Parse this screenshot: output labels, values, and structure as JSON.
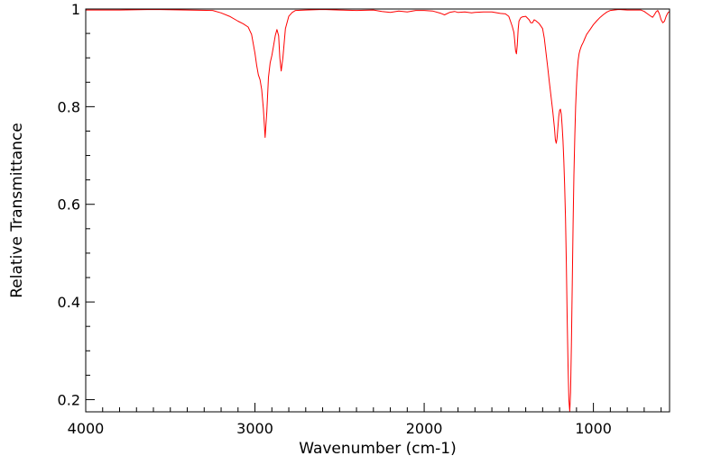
{
  "chart_data": {
    "type": "line",
    "title": "",
    "xlabel": "Wavenumber (cm-1)",
    "ylabel": "Relative Transmittance",
    "xlim": [
      4000,
      550
    ],
    "ylim": [
      0.175,
      1.0
    ],
    "x_ticks": [
      {
        "value": 4000,
        "label": "4000"
      },
      {
        "value": 3000,
        "label": "3000"
      },
      {
        "value": 2000,
        "label": "2000"
      },
      {
        "value": 1000,
        "label": "1000"
      }
    ],
    "y_ticks": [
      {
        "value": 1.0,
        "label": "1"
      },
      {
        "value": 0.8,
        "label": "0.8"
      },
      {
        "value": 0.6,
        "label": "0.6"
      },
      {
        "value": 0.4,
        "label": "0.4"
      },
      {
        "value": 0.2,
        "label": "0.2"
      }
    ],
    "grid": false,
    "legend": "none",
    "series": [
      {
        "color": "#ff0000",
        "x": [
          4000,
          3800,
          3600,
          3400,
          3250,
          3200,
          3150,
          3100,
          3070,
          3040,
          3020,
          3000,
          2990,
          2980,
          2970,
          2960,
          2950,
          2940,
          2930,
          2920,
          2910,
          2900,
          2890,
          2880,
          2870,
          2860,
          2853,
          2845,
          2835,
          2820,
          2800,
          2780,
          2760,
          2700,
          2600,
          2500,
          2400,
          2300,
          2250,
          2200,
          2150,
          2100,
          2050,
          2000,
          1950,
          1900,
          1880,
          1850,
          1820,
          1800,
          1760,
          1720,
          1700,
          1650,
          1600,
          1550,
          1520,
          1500,
          1490,
          1480,
          1470,
          1465,
          1460,
          1455,
          1450,
          1445,
          1440,
          1430,
          1420,
          1400,
          1380,
          1370,
          1360,
          1350,
          1340,
          1320,
          1300,
          1290,
          1280,
          1270,
          1260,
          1250,
          1240,
          1230,
          1225,
          1220,
          1215,
          1210,
          1205,
          1200,
          1195,
          1190,
          1185,
          1180,
          1175,
          1170,
          1165,
          1160,
          1155,
          1150,
          1145,
          1140,
          1135,
          1130,
          1125,
          1120,
          1115,
          1110,
          1105,
          1100,
          1095,
          1090,
          1085,
          1080,
          1075,
          1070,
          1060,
          1050,
          1040,
          1030,
          1020,
          1000,
          980,
          960,
          940,
          920,
          900,
          850,
          800,
          750,
          720,
          700,
          680,
          660,
          650,
          640,
          630,
          620,
          610,
          600,
          590,
          580,
          570,
          560,
          550
        ],
        "y": [
          0.998,
          0.998,
          0.999,
          0.998,
          0.997,
          0.992,
          0.985,
          0.975,
          0.97,
          0.963,
          0.948,
          0.91,
          0.885,
          0.865,
          0.855,
          0.835,
          0.795,
          0.737,
          0.79,
          0.86,
          0.89,
          0.905,
          0.925,
          0.945,
          0.958,
          0.945,
          0.9,
          0.873,
          0.9,
          0.96,
          0.985,
          0.993,
          0.997,
          0.998,
          0.999,
          0.998,
          0.997,
          0.998,
          0.995,
          0.993,
          0.996,
          0.994,
          0.997,
          0.997,
          0.996,
          0.991,
          0.988,
          0.993,
          0.995,
          0.993,
          0.994,
          0.992,
          0.993,
          0.994,
          0.994,
          0.991,
          0.99,
          0.985,
          0.975,
          0.965,
          0.952,
          0.935,
          0.915,
          0.908,
          0.925,
          0.958,
          0.975,
          0.982,
          0.984,
          0.985,
          0.978,
          0.972,
          0.972,
          0.978,
          0.976,
          0.97,
          0.96,
          0.94,
          0.91,
          0.88,
          0.85,
          0.82,
          0.79,
          0.755,
          0.733,
          0.725,
          0.735,
          0.756,
          0.78,
          0.792,
          0.795,
          0.785,
          0.762,
          0.73,
          0.69,
          0.64,
          0.57,
          0.48,
          0.37,
          0.27,
          0.2,
          0.176,
          0.215,
          0.31,
          0.44,
          0.56,
          0.66,
          0.74,
          0.8,
          0.845,
          0.875,
          0.895,
          0.908,
          0.915,
          0.92,
          0.925,
          0.932,
          0.94,
          0.948,
          0.953,
          0.958,
          0.968,
          0.976,
          0.983,
          0.989,
          0.994,
          0.997,
          0.999,
          0.998,
          0.998,
          0.998,
          0.995,
          0.99,
          0.985,
          0.983,
          0.988,
          0.994,
          0.997,
          0.99,
          0.978,
          0.972,
          0.975,
          0.985,
          0.992,
          0.995
        ]
      }
    ]
  }
}
